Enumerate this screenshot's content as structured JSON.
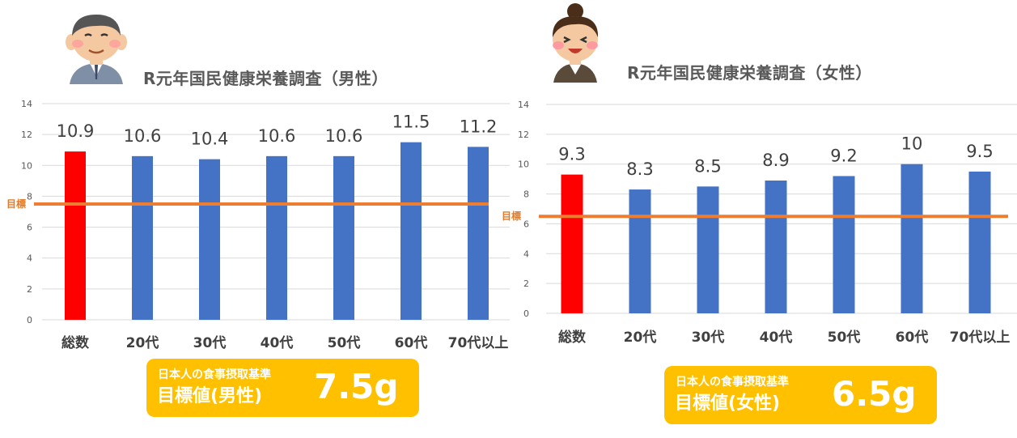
{
  "colors": {
    "total_bar": "#ff0000",
    "age_bar": "#4472c4",
    "target_line": "#ed7d31",
    "badge": "#ffc000",
    "grid": "#d9d9d9"
  },
  "chart_data": [
    {
      "type": "bar",
      "title": "R元年国民健康栄養調査（男性）",
      "categories": [
        "総数",
        "20代",
        "30代",
        "40代",
        "50代",
        "60代",
        "70代以上"
      ],
      "values": [
        10.9,
        10.6,
        10.4,
        10.6,
        10.6,
        11.5,
        11.2
      ],
      "data_labels": [
        "10.9",
        "10.6",
        "10.4",
        "10.6",
        "10.6",
        "11.5",
        "11.2"
      ],
      "highlight_index": 0,
      "ylim": [
        0,
        14
      ],
      "yticks": [
        0,
        2,
        4,
        6,
        8,
        10,
        12,
        14
      ],
      "grid": true,
      "target": {
        "label": "目標",
        "value": 7.5
      },
      "badge": {
        "line1": "日本人の食事摂取基準",
        "line2": "目標値(男性)",
        "value": "7.5g"
      },
      "avatar": "male-avatar-icon"
    },
    {
      "type": "bar",
      "title": "R元年国民健康栄養調査（女性）",
      "categories": [
        "総数",
        "20代",
        "30代",
        "40代",
        "50代",
        "60代",
        "70代以上"
      ],
      "values": [
        9.3,
        8.3,
        8.5,
        8.9,
        9.2,
        10,
        9.5
      ],
      "data_labels": [
        "9.3",
        "8.3",
        "8.5",
        "8.9",
        "9.2",
        "10",
        "9.5"
      ],
      "highlight_index": 0,
      "ylim": [
        0,
        14
      ],
      "yticks": [
        0,
        2,
        4,
        6,
        8,
        10,
        12,
        14
      ],
      "grid": true,
      "target": {
        "label": "目標",
        "value": 6.5
      },
      "badge": {
        "line1": "日本人の食事摂取基準",
        "line2": "目標値(女性)",
        "value": "6.5g"
      },
      "avatar": "female-avatar-icon"
    }
  ]
}
